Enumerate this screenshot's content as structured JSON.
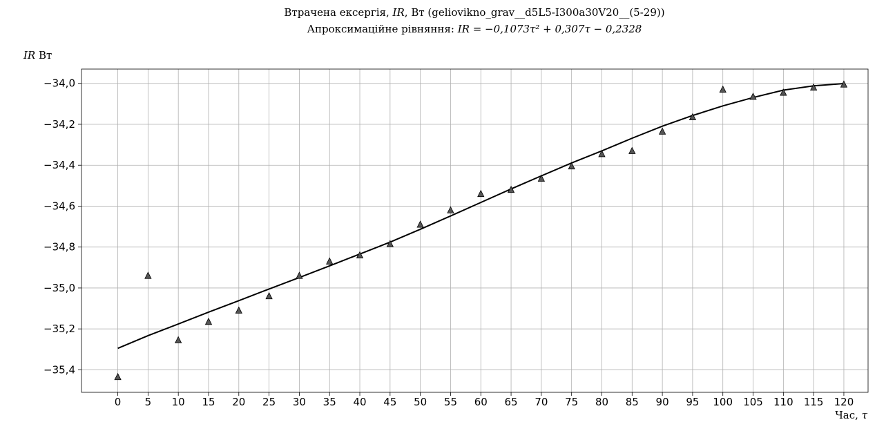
{
  "chart_data": {
    "type": "scatter",
    "title": "Втрачена ексергія, IR, Вт (geliovikno_grav__d5L5-I300a30V20__(5-29))",
    "title_parts": {
      "prefix": "Втрачена ексергія, ",
      "symbol": "IR",
      "suffix": ", Вт (geliovikno_grav__d5L5-I300a30V20__(5-29))"
    },
    "subtitle": "Апроксимаційне рівняння: IR = −0,1073τ² + 0,307τ − 0,2328",
    "subtitle_parts": {
      "prefix": "Апроксимаційне рівняння: ",
      "equation": "IR = −0,1073τ² + 0,307τ − 0,2328"
    },
    "ylabel": "IR Вт",
    "ylabel_parts": {
      "symbol": "IR",
      "unit": " Вт"
    },
    "xlabel": "Час, τ",
    "xlabel_parts": {
      "text": "Час, ",
      "symbol": "τ"
    },
    "xlim": [
      -6,
      124
    ],
    "ylim": [
      -35.51,
      -33.93
    ],
    "x_ticks": [
      0,
      5,
      10,
      15,
      20,
      25,
      30,
      35,
      40,
      45,
      50,
      55,
      60,
      65,
      70,
      75,
      80,
      85,
      90,
      95,
      100,
      105,
      110,
      115,
      120
    ],
    "y_ticks": [
      -35.4,
      -35.2,
      -35.0,
      -34.8,
      -34.6,
      -34.4,
      -34.2,
      -34.0
    ],
    "y_tick_labels": [
      "−35,4",
      "−35,2",
      "−35,0",
      "−34,8",
      "−34,6",
      "−34,4",
      "−34,2",
      "−34,0"
    ],
    "grid": true,
    "series": [
      {
        "marker": "triangle",
        "color": "#555555",
        "x": [
          0,
          5,
          10,
          15,
          20,
          25,
          30,
          35,
          40,
          45,
          50,
          55,
          60,
          65,
          70,
          75,
          80,
          85,
          90,
          95,
          100,
          105,
          110,
          115,
          120
        ],
        "y": [
          -35.435,
          -34.94,
          -35.255,
          -35.165,
          -35.11,
          -35.04,
          -34.94,
          -34.87,
          -34.84,
          -34.785,
          -34.69,
          -34.62,
          -34.54,
          -34.52,
          -34.465,
          -34.405,
          -34.345,
          -34.33,
          -34.235,
          -34.165,
          -34.03,
          -34.065,
          -34.045,
          -34.02,
          -34.005
        ]
      },
      {
        "type": "line",
        "color": "#000000",
        "x": [
          0,
          5,
          10,
          15,
          20,
          25,
          30,
          35,
          40,
          45,
          50,
          55,
          60,
          65,
          70,
          75,
          80,
          85,
          90,
          95,
          100,
          105,
          110,
          115,
          120
        ],
        "y": [
          -35.295,
          -35.233,
          -35.176,
          -35.118,
          -35.062,
          -35.005,
          -34.949,
          -34.892,
          -34.834,
          -34.776,
          -34.713,
          -34.648,
          -34.582,
          -34.516,
          -34.452,
          -34.389,
          -34.33,
          -34.268,
          -34.209,
          -34.157,
          -34.11,
          -34.069,
          -34.033,
          -34.012,
          -34.001
        ]
      }
    ]
  }
}
